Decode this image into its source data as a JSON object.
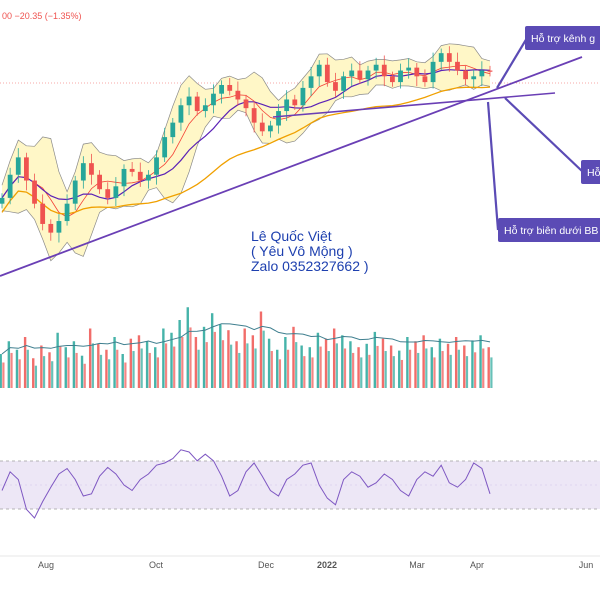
{
  "header": {
    "change_text": "00  −20.35  (−1.35%)"
  },
  "colors": {
    "up": "#26a69a",
    "down": "#ef5350",
    "bb_fill": "#fff7c7",
    "bb_line": "#8a8a8a",
    "sma_short": "#f44336",
    "sma_mid": "#5b21b6",
    "sma_long": "#f0a000",
    "trendline": "#6a3fb5",
    "annotation_bg": "#5b4bb5",
    "rsi_line": "#7e57c2",
    "rsi_band": "#ede7f6",
    "volume_ma": "#3f7f8f",
    "watermark": "#1e40af"
  },
  "annotations": [
    {
      "text": "Hỗ trợ kênh g"
    },
    {
      "text": "Hỗ"
    },
    {
      "text": "Hỗ trợ biên dưới BB"
    }
  ],
  "watermark": {
    "line1": "Lê Quốc Việt",
    "line2": "( Yêu Vô Mộng )",
    "line3": "Zalo 0352327662 )"
  },
  "chart_data": {
    "type": "candlestick",
    "x_tick_labels": [
      "Aug",
      "Oct",
      "Dec",
      "2022",
      "Mar",
      "Apr",
      "Jun"
    ],
    "change": {
      "points": -20.35,
      "percent": -1.35
    },
    "price_series": [
      1270,
      1310,
      1340,
      1300,
      1260,
      1225,
      1210,
      1230,
      1260,
      1300,
      1330,
      1310,
      1285,
      1270,
      1290,
      1320,
      1315,
      1300,
      1310,
      1340,
      1375,
      1400,
      1430,
      1445,
      1420,
      1430,
      1450,
      1465,
      1455,
      1440,
      1425,
      1400,
      1385,
      1395,
      1420,
      1440,
      1430,
      1460,
      1480,
      1500,
      1470,
      1455,
      1480,
      1490,
      1475,
      1490,
      1500,
      1480,
      1470,
      1490,
      1495,
      1480,
      1470,
      1505,
      1520,
      1505,
      1490,
      1475,
      1480,
      1490,
      1488
    ],
    "indicators": [
      "Bollinger Bands",
      "SMA short",
      "SMA mid",
      "SMA long",
      "Volume",
      "Volume MA",
      "RSI"
    ],
    "rsi_series": [
      45,
      62,
      55,
      28,
      20,
      35,
      48,
      60,
      65,
      55,
      40,
      42,
      58,
      66,
      60,
      50,
      45,
      55,
      60,
      68,
      70,
      74,
      82,
      80,
      72,
      78,
      72,
      58,
      40,
      45,
      62,
      70,
      58,
      45,
      40,
      55,
      60,
      68,
      70,
      50,
      38,
      32,
      55,
      62,
      58,
      48,
      52,
      60,
      55,
      45,
      40,
      55,
      62,
      58,
      68,
      52,
      48,
      55,
      70,
      65,
      42
    ],
    "volume_series": [
      40,
      55,
      45,
      60,
      35,
      50,
      42,
      65,
      48,
      55,
      38,
      70,
      52,
      45,
      60,
      40,
      58,
      62,
      55,
      48,
      70,
      65,
      80,
      95,
      60,
      72,
      88,
      75,
      68,
      55,
      70,
      62,
      90,
      58,
      45,
      60,
      72,
      50,
      48,
      65,
      58,
      70,
      62,
      55,
      48,
      52,
      66,
      58,
      50,
      44,
      60,
      55,
      62,
      48,
      58,
      52,
      60,
      50,
      56,
      62,
      48
    ]
  }
}
